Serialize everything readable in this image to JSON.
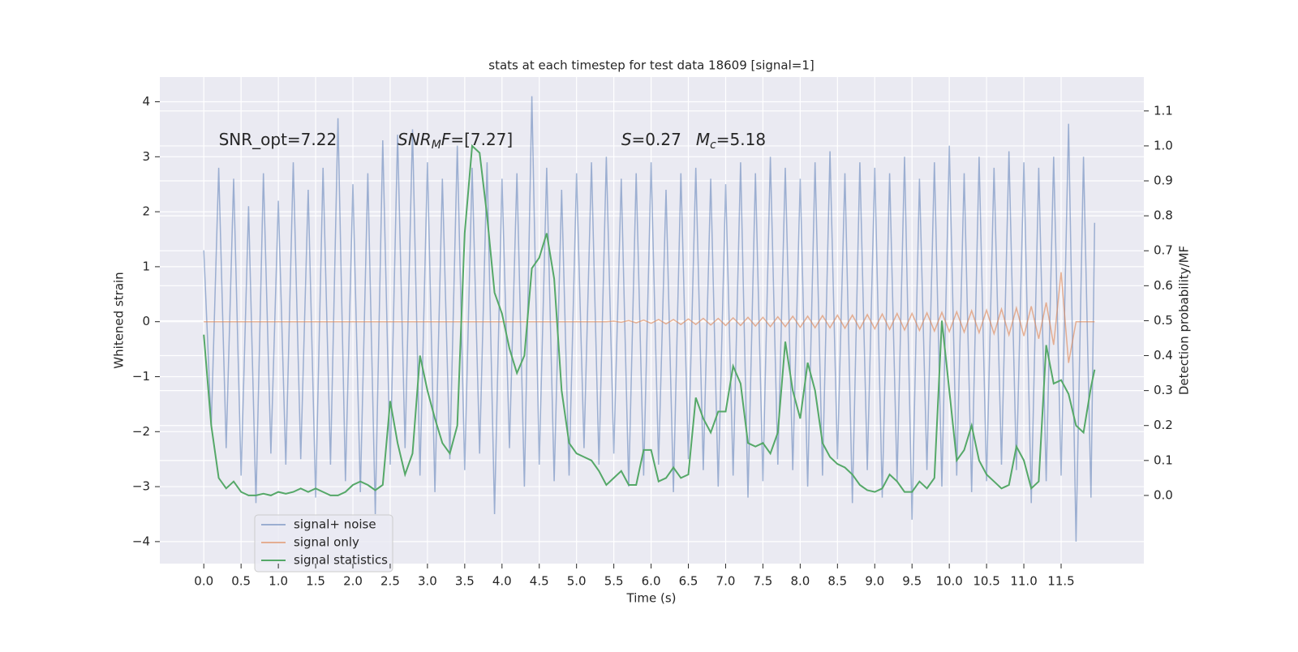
{
  "chart_data": {
    "type": "line",
    "title": "stats at each timestep for test data 18609 [signal=1]",
    "xlabel": "Time (s)",
    "ylabel": "Whitened strain",
    "y2label": "Detection probability/MF",
    "xlim": [
      -0.59,
      12.61
    ],
    "ylim": [
      -4.4,
      4.45
    ],
    "y2lim": [
      -0.195,
      1.197
    ],
    "xticks": [
      {
        "value": 0,
        "label": "0.0"
      },
      {
        "value": 0.5,
        "label": "0.5"
      },
      {
        "value": 1,
        "label": "1.0"
      },
      {
        "value": 1.5,
        "label": "1.5"
      },
      {
        "value": 2,
        "label": "2.0"
      },
      {
        "value": 2.5,
        "label": "2.5"
      },
      {
        "value": 3,
        "label": "3.0"
      },
      {
        "value": 3.5,
        "label": "3.5"
      },
      {
        "value": 4,
        "label": "4.0"
      },
      {
        "value": 4.5,
        "label": "4.5"
      },
      {
        "value": 5,
        "label": "5.0"
      },
      {
        "value": 5.5,
        "label": "5.5"
      },
      {
        "value": 6,
        "label": "6.0"
      },
      {
        "value": 6.5,
        "label": "6.5"
      },
      {
        "value": 7,
        "label": "7.0"
      },
      {
        "value": 7.5,
        "label": "7.5"
      },
      {
        "value": 8,
        "label": "8.0"
      },
      {
        "value": 8.5,
        "label": "8.5"
      },
      {
        "value": 9,
        "label": "9.0"
      },
      {
        "value": 9.5,
        "label": "9.5"
      },
      {
        "value": 10,
        "label": "10.0"
      },
      {
        "value": 10.5,
        "label": "10.5"
      },
      {
        "value": 11,
        "label": "11.0"
      },
      {
        "value": 11.5,
        "label": "11.5"
      }
    ],
    "yticks": [
      {
        "value": -4,
        "label": "−4"
      },
      {
        "value": -3,
        "label": "−3"
      },
      {
        "value": -2,
        "label": "−2"
      },
      {
        "value": -1,
        "label": "−1"
      },
      0,
      1,
      2,
      3,
      4
    ],
    "y2ticks": [
      {
        "value": 0,
        "label": "0.0"
      },
      {
        "value": 0.1,
        "label": "0.1"
      },
      {
        "value": 0.2,
        "label": "0.2"
      },
      {
        "value": 0.3,
        "label": "0.3"
      },
      {
        "value": 0.4,
        "label": "0.4"
      },
      {
        "value": 0.5,
        "label": "0.5"
      },
      {
        "value": 0.6,
        "label": "0.6"
      },
      {
        "value": 0.7,
        "label": "0.7"
      },
      {
        "value": 0.8,
        "label": "0.8"
      },
      {
        "value": 0.9,
        "label": "0.9"
      },
      {
        "value": 1,
        "label": "1.0"
      },
      {
        "value": 1.1,
        "label": "1.1"
      }
    ],
    "grid": true,
    "legend": "lower left",
    "x": [
      0,
      0.1,
      0.2,
      0.3,
      0.4,
      0.5,
      0.6,
      0.7,
      0.8,
      0.9,
      1,
      1.1,
      1.2,
      1.3,
      1.4,
      1.5,
      1.6,
      1.7,
      1.8,
      1.9,
      2,
      2.1,
      2.2,
      2.3,
      2.4,
      2.5,
      2.6,
      2.7,
      2.8,
      2.9,
      3,
      3.1,
      3.2,
      3.3,
      3.4,
      3.5,
      3.6,
      3.7,
      3.8,
      3.9,
      4,
      4.1,
      4.2,
      4.3,
      4.4,
      4.5,
      4.6,
      4.7,
      4.8,
      4.9,
      5,
      5.1,
      5.2,
      5.3,
      5.4,
      5.5,
      5.6,
      5.7,
      5.8,
      5.9,
      6,
      6.1,
      6.2,
      6.3,
      6.4,
      6.5,
      6.6,
      6.7,
      6.8,
      6.9,
      7,
      7.1,
      7.2,
      7.3,
      7.4,
      7.5,
      7.6,
      7.7,
      7.8,
      7.9,
      8,
      8.1,
      8.2,
      8.3,
      8.4,
      8.5,
      8.6,
      8.7,
      8.8,
      8.9,
      9,
      9.1,
      9.2,
      9.3,
      9.4,
      9.5,
      9.6,
      9.7,
      9.8,
      9.9,
      10,
      10.1,
      10.2,
      10.3,
      10.4,
      10.5,
      10.6,
      10.7,
      10.8,
      10.9,
      11,
      11.1,
      11.2,
      11.3,
      11.4,
      11.5,
      11.6,
      11.7,
      11.8,
      11.9,
      11.95
    ],
    "series": [
      {
        "name": "signal+ noise",
        "color": "#4c72b0",
        "opacity": 0.5,
        "axis": "y",
        "values": [
          1.3,
          -1.9,
          2.8,
          -2.3,
          2.6,
          -2.8,
          2.1,
          -3.3,
          2.7,
          -2.4,
          2.2,
          -2.6,
          2.9,
          -2.5,
          2.4,
          -3.2,
          2.8,
          -2.6,
          3.7,
          -2.9,
          2.5,
          -3.1,
          2.7,
          -3.5,
          3.3,
          -2.6,
          3.4,
          -2.3,
          3.5,
          -2.8,
          2.9,
          -3.1,
          2.6,
          -2.5,
          3.2,
          -2.7,
          2.8,
          -2.4,
          2.9,
          -3.5,
          2.6,
          -2.3,
          2.7,
          -3.0,
          4.1,
          -2.6,
          2.8,
          -2.9,
          2.4,
          -2.8,
          2.7,
          -2.3,
          2.9,
          -2.6,
          3.0,
          -2.4,
          2.6,
          -3.0,
          2.7,
          -2.8,
          2.9,
          -2.6,
          2.4,
          -3.1,
          2.7,
          -2.5,
          2.8,
          -2.7,
          2.6,
          -3.0,
          2.5,
          -2.8,
          2.9,
          -3.2,
          2.7,
          -2.9,
          3.0,
          -2.6,
          2.8,
          -2.7,
          2.6,
          -3.0,
          2.9,
          -2.8,
          3.1,
          -2.5,
          2.7,
          -3.3,
          2.9,
          -2.7,
          2.8,
          -3.2,
          2.7,
          -2.9,
          3.0,
          -3.6,
          2.6,
          -2.7,
          2.9,
          -3.0,
          3.2,
          -2.8,
          2.7,
          -3.1,
          3.0,
          -2.9,
          2.8,
          -2.6,
          3.1,
          -2.7,
          2.9,
          -3.3,
          2.8,
          -2.9,
          3.0,
          -2.8,
          3.6,
          -4.0,
          3.0,
          -3.2,
          1.8
        ]
      },
      {
        "name": "signal only",
        "color": "#dd8452",
        "opacity": 0.6,
        "axis": "y",
        "values": [
          0,
          0,
          0,
          0,
          0,
          0,
          0,
          0,
          0,
          0,
          0,
          0,
          0,
          0,
          0,
          0,
          0,
          0,
          0,
          0,
          0,
          0,
          0,
          0,
          0,
          0,
          0,
          0,
          0,
          0,
          0,
          0,
          0,
          0,
          0,
          0,
          0,
          0,
          0,
          0,
          0,
          0,
          0,
          0,
          0,
          0,
          0,
          0,
          0,
          0,
          0,
          0,
          0,
          0,
          0,
          0.01,
          -0.01,
          0.02,
          -0.02,
          0.03,
          -0.03,
          0.04,
          -0.04,
          0.04,
          -0.05,
          0.05,
          -0.05,
          0.06,
          -0.06,
          0.06,
          -0.07,
          0.07,
          -0.07,
          0.08,
          -0.08,
          0.08,
          -0.09,
          0.09,
          -0.09,
          0.1,
          -0.1,
          0.1,
          -0.11,
          0.11,
          -0.11,
          0.12,
          -0.12,
          0.12,
          -0.13,
          0.13,
          -0.13,
          0.14,
          -0.14,
          0.15,
          -0.15,
          0.15,
          -0.16,
          0.16,
          -0.17,
          0.17,
          -0.18,
          0.18,
          -0.19,
          0.2,
          -0.2,
          0.21,
          -0.22,
          0.23,
          -0.24,
          0.25,
          -0.26,
          0.28,
          -0.31,
          0.35,
          -0.42,
          0.9,
          -0.75,
          0,
          0,
          0,
          0
        ]
      },
      {
        "name": "signal statistics",
        "color": "#55a868",
        "opacity": 1,
        "axis": "y2",
        "values": [
          0.46,
          0.2,
          0.05,
          0.02,
          0.04,
          0.01,
          0,
          0,
          0.005,
          0,
          0.01,
          0.005,
          0.01,
          0.02,
          0.01,
          0.02,
          0.01,
          0,
          0,
          0.01,
          0.03,
          0.04,
          0.03,
          0.015,
          0.03,
          0.27,
          0.15,
          0.06,
          0.12,
          0.4,
          0.3,
          0.22,
          0.15,
          0.12,
          0.2,
          0.75,
          1.0,
          0.98,
          0.8,
          0.58,
          0.52,
          0.42,
          0.35,
          0.4,
          0.65,
          0.68,
          0.75,
          0.62,
          0.3,
          0.15,
          0.12,
          0.11,
          0.1,
          0.07,
          0.03,
          0.05,
          0.07,
          0.03,
          0.03,
          0.13,
          0.13,
          0.04,
          0.05,
          0.08,
          0.05,
          0.06,
          0.28,
          0.22,
          0.18,
          0.24,
          0.24,
          0.37,
          0.32,
          0.15,
          0.14,
          0.15,
          0.12,
          0.18,
          0.44,
          0.3,
          0.22,
          0.38,
          0.3,
          0.15,
          0.11,
          0.09,
          0.08,
          0.06,
          0.03,
          0.015,
          0.01,
          0.02,
          0.06,
          0.04,
          0.01,
          0.01,
          0.04,
          0.02,
          0.05,
          0.5,
          0.3,
          0.1,
          0.13,
          0.2,
          0.1,
          0.06,
          0.04,
          0.02,
          0.03,
          0.14,
          0.1,
          0.02,
          0.04,
          0.43,
          0.32,
          0.33,
          0.29,
          0.2,
          0.18,
          0.31,
          0.36
        ]
      }
    ],
    "annotations": [
      {
        "x": 0.2,
        "y": 3.3,
        "parts": [
          {
            "text": "SNR_opt=7.22"
          }
        ]
      },
      {
        "x": 2.6,
        "y": 3.3,
        "parts": [
          {
            "text": "SNR",
            "italic": true
          },
          {
            "text": "M",
            "italic": true,
            "sub": true
          },
          {
            "text": "F",
            "italic": true
          },
          {
            "text": "=[7.27]"
          }
        ]
      },
      {
        "x": 5.6,
        "y": 3.3,
        "parts": [
          {
            "text": "S",
            "italic": true
          },
          {
            "text": "=0.27"
          },
          {
            "text": "M",
            "italic": true,
            "gap": true
          },
          {
            "text": "c",
            "italic": true,
            "sub": true
          },
          {
            "text": "=5.18"
          }
        ]
      }
    ]
  }
}
